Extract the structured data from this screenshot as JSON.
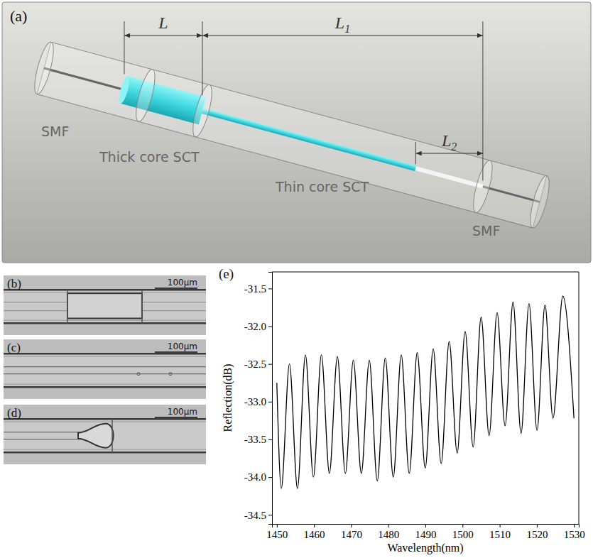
{
  "schematic": {
    "label": "(a)",
    "dimensions": [
      {
        "text": "L"
      },
      {
        "text": "L",
        "sub": "1"
      },
      {
        "text": "L",
        "sub": "2"
      }
    ],
    "parts": [
      "SMF",
      "Thick core SCT",
      "Thin core SCT",
      "SMF"
    ]
  },
  "micrographs": [
    {
      "label": "(b)",
      "scale_bar": "100μm"
    },
    {
      "label": "(c)",
      "scale_bar": "100μm"
    },
    {
      "label": "(d)",
      "scale_bar": "100μm"
    }
  ],
  "chart_data": {
    "type": "line",
    "annotation": "(e)",
    "xlabel": "Wavelength(nm)",
    "ylabel": "Reflection(dB)",
    "x": [
      1450.0,
      1451.2,
      1453.4,
      1455.55,
      1457.7,
      1459.85,
      1462.0,
      1464.15,
      1466.3,
      1468.45,
      1470.6,
      1472.75,
      1474.9,
      1477.05,
      1479.2,
      1481.35,
      1483.5,
      1485.65,
      1487.8,
      1489.95,
      1492.1,
      1494.25,
      1496.4,
      1498.55,
      1500.7,
      1502.85,
      1505.0,
      1507.15,
      1509.3,
      1511.45,
      1513.6,
      1515.75,
      1517.9,
      1520.05,
      1522.2,
      1524.35,
      1527.0,
      1530.0
    ],
    "values": [
      -32.75,
      -34.15,
      -32.5,
      -34.15,
      -32.38,
      -34.0,
      -32.38,
      -33.95,
      -32.4,
      -33.95,
      -32.45,
      -33.95,
      -32.45,
      -34.05,
      -32.42,
      -34.0,
      -32.38,
      -33.95,
      -32.35,
      -33.88,
      -32.3,
      -33.82,
      -32.2,
      -33.68,
      -32.07,
      -33.6,
      -31.88,
      -33.45,
      -31.82,
      -33.32,
      -31.68,
      -33.42,
      -31.7,
      -33.38,
      -31.72,
      -33.22,
      -31.6,
      -33.22
    ],
    "color": "#000000",
    "xlim": [
      1448.7,
      1531.3
    ],
    "ylim": [
      -34.62,
      -31.28
    ],
    "xticks": [
      1450,
      1460,
      1470,
      1480,
      1490,
      1500,
      1510,
      1520,
      1530
    ],
    "yticks": [
      -31.5,
      {
        "value": -32,
        "label": "-32.0"
      },
      -32.5,
      {
        "value": -33,
        "label": "-33.0"
      },
      -33.5,
      {
        "value": -34,
        "label": "-34.0"
      },
      -34.5
    ],
    "grid": false
  }
}
